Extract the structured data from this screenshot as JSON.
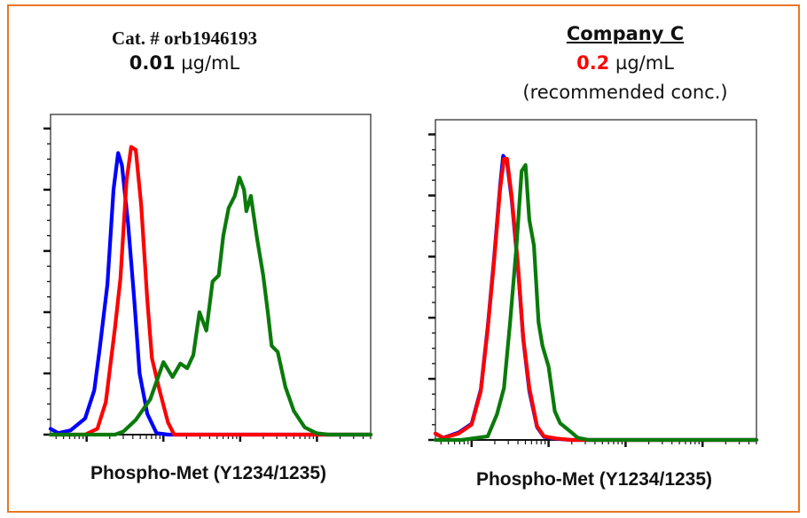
{
  "border_color": "#E87722",
  "colors": {
    "blue": "#0000FF",
    "red": "#FF0000",
    "green": "#0A7A0A",
    "highlight": "#FF0000"
  },
  "chart_data": [
    {
      "type": "line",
      "title": {
        "line1": "Cat. # orb1946193",
        "conc_value": "0.01",
        "conc_unit": "µg/mL"
      },
      "xlabel": "Phospho-Met (Y1234/1235)",
      "ylabel": "",
      "x_scale": "log (decades, unlabeled ticks)",
      "xlim": [
        0.53,
        4.7
      ],
      "ylim": [
        0,
        104.6
      ],
      "grid": false,
      "legend": "none",
      "series": [
        {
          "color": "blue",
          "x": [
            0.52,
            0.63,
            0.79,
            0.98,
            1.1,
            1.17,
            1.27,
            1.35,
            1.41,
            1.46,
            1.54,
            1.62,
            1.69,
            1.79,
            1.91,
            2.06,
            4.7
          ],
          "y": [
            1.9,
            0.5,
            1.4,
            5.3,
            14.5,
            28,
            49,
            80,
            92,
            88,
            69,
            44,
            20,
            6.8,
            0.5,
            0,
            0
          ]
        },
        {
          "color": "red",
          "x": [
            0.53,
            0.98,
            1.14,
            1.25,
            1.37,
            1.44,
            1.52,
            1.58,
            1.64,
            1.71,
            1.79,
            1.85,
            1.95,
            2.06,
            2.14,
            4.7
          ],
          "y": [
            0,
            0,
            1.9,
            10.6,
            35,
            51,
            83,
            94,
            93,
            75,
            44,
            25,
            14.5,
            3.9,
            0,
            0
          ]
        },
        {
          "color": "green",
          "x": [
            0.53,
            1.37,
            1.48,
            1.64,
            1.83,
            2.0,
            2.12,
            2.22,
            2.31,
            2.39,
            2.47,
            2.56,
            2.64,
            2.72,
            2.78,
            2.85,
            2.93,
            2.99,
            3.05,
            3.08,
            3.14,
            3.22,
            3.3,
            3.36,
            3.41,
            3.49,
            3.59,
            3.7,
            3.84,
            3.99,
            4.15,
            4.71
          ],
          "y": [
            0,
            0,
            1.0,
            4.8,
            11.6,
            23.7,
            18.8,
            23.2,
            21.7,
            26,
            40,
            34,
            50,
            52,
            65,
            74,
            78,
            84,
            80,
            73,
            78,
            64,
            52,
            40,
            29,
            27,
            15.5,
            7.7,
            2.4,
            0.5,
            0,
            0
          ]
        }
      ]
    },
    {
      "type": "line",
      "title": {
        "line1": "Company C",
        "conc_value": "0.2",
        "conc_unit": "µg/mL",
        "line3": "(recommended conc.)"
      },
      "xlabel": "Phospho-Met (Y1234/1235)",
      "ylabel": "",
      "x_scale": "log (decades, unlabeled ticks)",
      "xlim": [
        0.53,
        4.7
      ],
      "ylim": [
        0,
        104.8
      ],
      "grid": false,
      "legend": "none",
      "series": [
        {
          "color": "blue",
          "x": [
            0.53,
            0.63,
            0.83,
            1.0,
            1.12,
            1.21,
            1.29,
            1.37,
            1.41,
            1.46,
            1.52,
            1.6,
            1.67,
            1.75,
            1.85,
            1.94,
            2.1,
            2.29,
            4.7
          ],
          "y": [
            2.1,
            0.7,
            2.4,
            5.3,
            16.5,
            37,
            59,
            83,
            93,
            91,
            79,
            57,
            33,
            16,
            4.2,
            1.0,
            0.4,
            0,
            0
          ]
        },
        {
          "color": "red",
          "x": [
            0.53,
            0.63,
            0.83,
            1.0,
            1.12,
            1.21,
            1.29,
            1.37,
            1.42,
            1.46,
            1.52,
            1.6,
            1.67,
            1.75,
            1.85,
            1.94,
            2.1,
            2.29,
            4.7
          ],
          "y": [
            2.1,
            0.7,
            2.1,
            5.0,
            16,
            36.4,
            58,
            82,
            92,
            92,
            80,
            58,
            33.5,
            17,
            4.5,
            1.2,
            0.5,
            0,
            0
          ]
        },
        {
          "color": "green",
          "x": [
            0.53,
            0.87,
            1.21,
            1.33,
            1.42,
            1.5,
            1.58,
            1.65,
            1.7,
            1.75,
            1.81,
            1.87,
            1.92,
            2.0,
            2.08,
            2.15,
            2.29,
            2.38,
            2.52,
            4.7
          ],
          "y": [
            0,
            0,
            1.2,
            8.4,
            17,
            38.5,
            62.7,
            88,
            90,
            72,
            63.6,
            38.5,
            30.8,
            24,
            9.4,
            5.5,
            2.6,
            0.7,
            0,
            0
          ]
        }
      ]
    }
  ]
}
